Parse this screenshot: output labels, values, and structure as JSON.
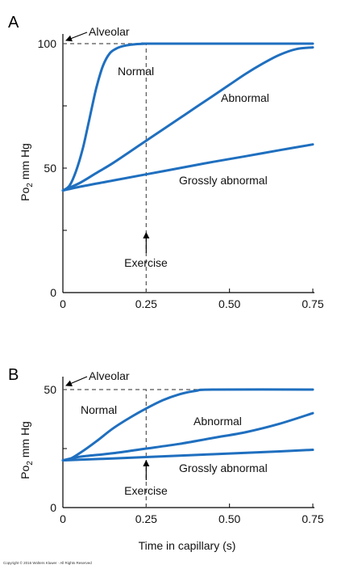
{
  "copyright": "Copyright © 2016 Wolters Kluwer · All Rights Reserved",
  "chart_data": [
    {
      "type": "line",
      "panel_label": "A",
      "ylabel_main": "Po",
      "ylabel_sub": "2",
      "ylabel_unit": "mm Hg",
      "xlabel": "",
      "xlim": [
        0,
        0.75
      ],
      "ylim": [
        0,
        100
      ],
      "x_ticks": [
        0,
        0.25,
        0.5,
        0.75
      ],
      "x_tick_labels": [
        "0",
        "0.25",
        "0.50",
        "0.75"
      ],
      "y_ticks": [
        0,
        50,
        100
      ],
      "y_tick_labels": [
        "0",
        "50",
        "100"
      ],
      "grid": false,
      "series": [
        {
          "name": "Normal",
          "x": [
            0,
            0.02,
            0.04,
            0.06,
            0.08,
            0.1,
            0.12,
            0.14,
            0.16,
            0.18,
            0.2,
            0.22,
            0.25,
            0.28,
            0.75
          ],
          "y": [
            41,
            43,
            49,
            58,
            70,
            82,
            91,
            96,
            98,
            99,
            99.5,
            99.8,
            100,
            100,
            100
          ]
        },
        {
          "name": "Abnormal",
          "x": [
            0,
            0.05,
            0.1,
            0.15,
            0.2,
            0.25,
            0.3,
            0.35,
            0.4,
            0.45,
            0.5,
            0.55,
            0.6,
            0.65,
            0.7,
            0.75
          ],
          "y": [
            41,
            44,
            48,
            52,
            56.5,
            61,
            65.5,
            70,
            74.5,
            79,
            83.5,
            88,
            92,
            95.5,
            97.8,
            98.5
          ]
        },
        {
          "name": "Grossly abnormal",
          "x": [
            0,
            0.05,
            0.15,
            0.25,
            0.35,
            0.45,
            0.55,
            0.65,
            0.75
          ],
          "y": [
            41,
            42.5,
            45,
            47.5,
            50,
            52.5,
            54.8,
            57.2,
            59.5
          ]
        }
      ],
      "reference": {
        "label": "Alveolar",
        "y": 100
      },
      "annotation": {
        "label": "Exercise",
        "x": 0.25
      }
    },
    {
      "type": "line",
      "panel_label": "B",
      "ylabel_main": "Po",
      "ylabel_sub": "2",
      "ylabel_unit": "mm Hg",
      "xlabel": "Time in capillary (s)",
      "xlim": [
        0,
        0.75
      ],
      "ylim": [
        0,
        55
      ],
      "x_ticks": [
        0,
        0.25,
        0.5,
        0.75
      ],
      "x_tick_labels": [
        "0",
        "0.25",
        "0.50",
        "0.75"
      ],
      "y_ticks": [
        0,
        50
      ],
      "y_tick_labels": [
        "0",
        "50"
      ],
      "grid": false,
      "series": [
        {
          "name": "Normal",
          "x": [
            0,
            0.02,
            0.05,
            0.1,
            0.15,
            0.2,
            0.25,
            0.3,
            0.35,
            0.4,
            0.45,
            0.75
          ],
          "y": [
            20,
            20.5,
            23,
            28,
            33.5,
            38,
            42,
            45.5,
            48,
            49.5,
            50,
            50
          ]
        },
        {
          "name": "Abnormal",
          "x": [
            0,
            0.05,
            0.15,
            0.25,
            0.35,
            0.45,
            0.55,
            0.65,
            0.75
          ],
          "y": [
            20,
            21.5,
            23,
            25,
            27,
            29.5,
            32,
            35.5,
            40
          ]
        },
        {
          "name": "Grossly abnormal",
          "x": [
            0,
            0.05,
            0.15,
            0.25,
            0.35,
            0.45,
            0.55,
            0.65,
            0.75
          ],
          "y": [
            20,
            20.3,
            20.8,
            21.4,
            22,
            22.6,
            23.2,
            23.8,
            24.5
          ]
        }
      ],
      "reference": {
        "label": "Alveolar",
        "y": 50
      },
      "annotation": {
        "label": "Exercise",
        "x": 0.25
      }
    }
  ],
  "style": {
    "curve_color": "#1f6fbf",
    "axis_color": "#000000",
    "dash_color": "#555555"
  }
}
